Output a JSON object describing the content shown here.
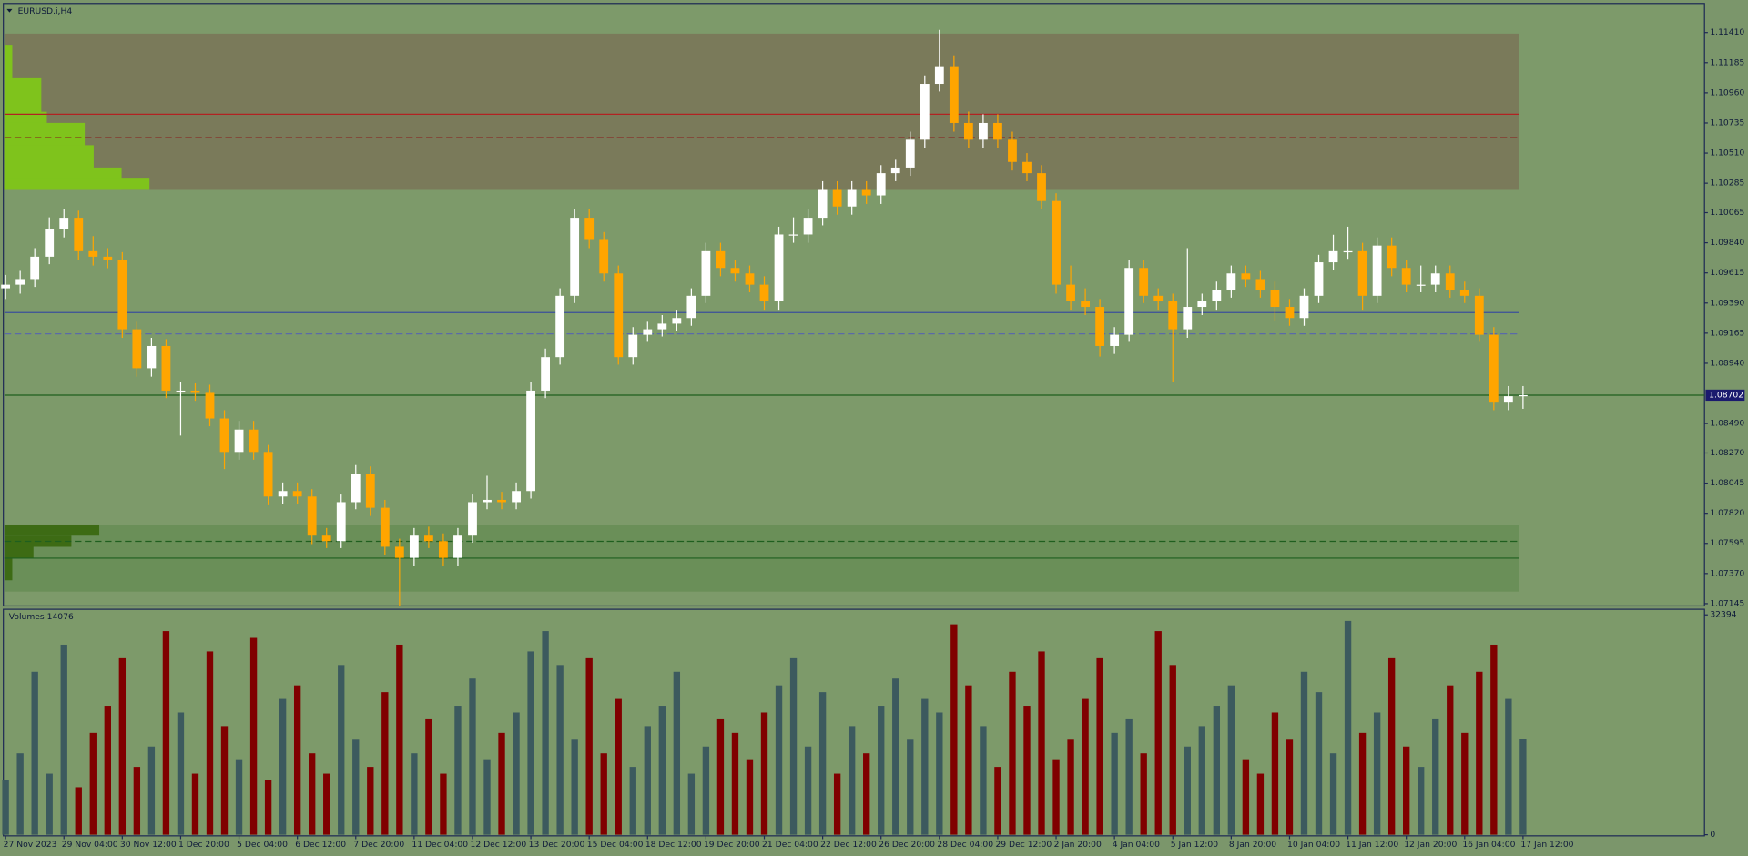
{
  "chart_data": {
    "type": "candlestick",
    "title": "EURUSD.i,H4",
    "volume_title": "Volumes 14076",
    "up_color": "#ffffff",
    "down_color": "#ffa500",
    "volume_up_color": "#3c5a5e",
    "volume_down_color": "#800000",
    "bid": 1.08702,
    "bid_color": "#1f5f1f",
    "ylim": [
      1.07128,
      1.11627
    ],
    "yticks": [
      {
        "value": 1.1141,
        "label": "1.11410"
      },
      1.11185,
      {
        "value": 1.1096,
        "label": "1.10960"
      },
      1.10735,
      {
        "value": 1.1051,
        "label": "1.10510"
      },
      1.10285,
      1.10065,
      {
        "value": 1.0984,
        "label": "1.09840"
      },
      1.09615,
      {
        "value": 1.0939,
        "label": "1.09390"
      },
      1.09165,
      {
        "value": 1.0894,
        "label": "1.08940"
      },
      {
        "value": 1.0849,
        "label": "1.08490"
      },
      {
        "value": 1.0827,
        "label": "1.08270"
      },
      1.08045,
      {
        "value": 1.0782,
        "label": "1.07820"
      },
      1.07595,
      {
        "value": 1.0737,
        "label": "1.07370"
      },
      1.07145
    ],
    "volume_ylim": [
      0,
      32394
    ],
    "volume_yticks": [
      32394,
      0
    ],
    "zones": [
      {
        "from": 1.10235,
        "to": 1.11402,
        "color": "#7a7a5a"
      },
      {
        "from": 1.07235,
        "to": 1.07735,
        "color": "#6a8f58"
      }
    ],
    "levels": [
      {
        "price": 1.108,
        "color": "#b22222",
        "dashed": false
      },
      {
        "price": 1.10625,
        "color": "#8b1a1a",
        "dashed": true
      },
      {
        "price": 1.09319,
        "color": "#3b4f9a",
        "dashed": false
      },
      {
        "price": 1.0916,
        "color": "#5a6aa8",
        "dashed": true
      },
      {
        "price": 1.0761,
        "color": "#1f5f1f",
        "dashed": true
      },
      {
        "price": 1.07485,
        "color": "#1f5f1f",
        "dashed": false
      }
    ],
    "categories": [
      "27 Nov 2023",
      null,
      null,
      null,
      "29 Nov 04:00",
      null,
      null,
      null,
      "30 Nov 12:00",
      null,
      null,
      null,
      "1 Dec 20:00",
      null,
      null,
      null,
      "5 Dec 04:00",
      null,
      null,
      null,
      "6 Dec 12:00",
      null,
      null,
      null,
      "7 Dec 20:00",
      null,
      null,
      null,
      "11 Dec 04:00",
      null,
      null,
      null,
      "12 Dec 12:00",
      null,
      null,
      null,
      "13 Dec 20:00",
      null,
      null,
      null,
      "15 Dec 04:00",
      null,
      null,
      null,
      "18 Dec 12:00",
      null,
      null,
      null,
      "19 Dec 20:00",
      null,
      null,
      null,
      "21 Dec 04:00",
      null,
      null,
      null,
      "22 Dec 12:00",
      null,
      null,
      null,
      "26 Dec 20:00",
      null,
      null,
      null,
      "28 Dec 04:00",
      null,
      null,
      null,
      "29 Dec 12:00",
      null,
      null,
      null,
      "2 Jan 20:00",
      null,
      null,
      null,
      "4 Jan 04:00",
      null,
      null,
      null,
      "5 Jan 12:00",
      null,
      null,
      null,
      "8 Jan 20:00",
      null,
      null,
      null,
      "10 Jan 04:00",
      null,
      null,
      null,
      "11 Jan 12:00",
      null,
      null,
      null,
      "12 Jan 20:00",
      null,
      null,
      null,
      "16 Jan 04:00",
      null,
      null,
      null,
      "17 Jan 12:00"
    ],
    "open": [
      1.095,
      1.09527,
      1.09569,
      1.09736,
      1.09944,
      1.10027,
      1.09777,
      1.09736,
      1.09711,
      1.09194,
      1.08903,
      1.09069,
      1.08736,
      1.08736,
      1.08719,
      1.08528,
      1.08278,
      1.08445,
      1.08278,
      1.07945,
      1.07986,
      1.07945,
      1.07653,
      1.07612,
      1.07903,
      1.08111,
      1.07861,
      1.0757,
      1.07487,
      1.07653,
      1.07612,
      1.07487,
      1.07653,
      1.07903,
      1.0792,
      1.07903,
      1.07986,
      1.08736,
      1.08986,
      1.09444,
      1.10027,
      1.09861,
      1.09611,
      1.08986,
      1.09153,
      1.09194,
      1.09236,
      1.09278,
      1.09444,
      1.09777,
      1.09652,
      1.09611,
      1.09527,
      1.09402,
      1.09902,
      1.09902,
      1.10027,
      1.10235,
      1.10111,
      1.10235,
      1.10194,
      1.1036,
      1.10402,
      1.1061,
      1.11027,
      1.11152,
      1.10735,
      1.1061,
      1.10735,
      1.1061,
      1.10444,
      1.1036,
      1.10152,
      1.09527,
      1.09402,
      1.09361,
      1.09069,
      1.09153,
      1.09652,
      1.09444,
      1.09402,
      1.09194,
      1.09361,
      1.09402,
      1.09486,
      1.09611,
      1.09569,
      1.09486,
      1.09361,
      1.09278,
      1.09444,
      1.09694,
      1.09777,
      1.09777,
      1.09444,
      1.09819,
      1.09652,
      1.09527,
      1.09527,
      1.09611,
      1.09486,
      1.09444,
      1.09153,
      1.08653,
      1.08694
    ],
    "high": [
      1.096,
      1.0963,
      1.098,
      1.1003,
      1.1009,
      1.1008,
      1.0989,
      1.098,
      1.0977,
      1.0925,
      1.0913,
      1.0912,
      1.088,
      1.0879,
      1.0878,
      1.0859,
      1.0851,
      1.0851,
      1.0833,
      1.0805,
      1.0805,
      1.08,
      1.0771,
      1.0796,
      1.0818,
      1.0817,
      1.0792,
      1.0763,
      1.0771,
      1.0772,
      1.0767,
      1.0771,
      1.0796,
      1.081,
      1.0798,
      1.0805,
      1.088,
      1.0905,
      1.095,
      1.1009,
      1.1009,
      1.0992,
      1.0967,
      1.0921,
      1.0925,
      1.093,
      1.0934,
      1.095,
      1.0984,
      1.0984,
      1.0971,
      1.0967,
      1.0959,
      1.0996,
      1.1003,
      1.1009,
      1.103,
      1.103,
      1.103,
      1.103,
      1.1042,
      1.1046,
      1.1067,
      1.1109,
      1.1143,
      1.1124,
      1.1082,
      1.108,
      1.108,
      1.1067,
      1.1051,
      1.1042,
      1.1021,
      1.0967,
      1.095,
      1.0942,
      1.0921,
      1.0971,
      1.0971,
      1.095,
      1.0946,
      1.098,
      1.0946,
      1.0955,
      1.0967,
      1.0967,
      1.0963,
      1.0955,
      1.0942,
      1.095,
      1.0975,
      1.099,
      1.0996,
      1.0984,
      1.0988,
      1.0988,
      1.0971,
      1.0967,
      1.0967,
      1.0967,
      1.0955,
      1.095,
      1.0921,
      1.0877,
      1.0877
    ],
    "low": [
      1.0942,
      1.0946,
      1.0951,
      1.0968,
      1.0988,
      1.0971,
      1.0967,
      1.0965,
      1.0913,
      1.0884,
      1.0884,
      1.0868,
      1.084,
      1.0866,
      1.0847,
      1.0815,
      1.0822,
      1.0822,
      1.0788,
      1.0789,
      1.0789,
      1.0759,
      1.0756,
      1.0756,
      1.0785,
      1.078,
      1.0751,
      1.0713,
      1.0743,
      1.0756,
      1.0743,
      1.0743,
      1.076,
      1.0785,
      1.0785,
      1.0785,
      1.0793,
      1.0868,
      1.0893,
      1.0939,
      1.098,
      1.0955,
      1.0893,
      1.0893,
      1.091,
      1.0914,
      1.0918,
      1.0922,
      1.0939,
      1.0959,
      1.0955,
      1.0947,
      1.0934,
      1.0934,
      1.0984,
      1.0984,
      1.0997,
      1.1005,
      1.1005,
      1.1013,
      1.1013,
      1.103,
      1.1034,
      1.1055,
      1.1097,
      1.1067,
      1.1055,
      1.1055,
      1.1055,
      1.1038,
      1.103,
      1.1009,
      1.0946,
      1.0934,
      1.093,
      1.0899,
      1.0901,
      1.091,
      1.0939,
      1.0934,
      1.088,
      1.0913,
      1.093,
      1.0934,
      1.0943,
      1.0951,
      1.0943,
      1.0926,
      1.0922,
      1.0922,
      1.0939,
      1.0964,
      1.0972,
      1.0934,
      1.0939,
      1.0959,
      1.0947,
      1.0947,
      1.0947,
      1.0943,
      1.0939,
      1.091,
      1.0859,
      1.0859,
      1.086
    ],
    "close": [
      1.09527,
      1.09569,
      1.09736,
      1.09944,
      1.10027,
      1.09777,
      1.09736,
      1.09711,
      1.09194,
      1.08903,
      1.09069,
      1.08736,
      1.08736,
      1.08719,
      1.08528,
      1.08278,
      1.08445,
      1.08278,
      1.07945,
      1.07986,
      1.07945,
      1.07653,
      1.07612,
      1.07903,
      1.08111,
      1.07861,
      1.0757,
      1.07487,
      1.07653,
      1.07612,
      1.07487,
      1.07653,
      1.07903,
      1.0792,
      1.07903,
      1.07986,
      1.08736,
      1.08986,
      1.09444,
      1.10027,
      1.09861,
      1.09611,
      1.08986,
      1.09153,
      1.09194,
      1.09236,
      1.09278,
      1.09444,
      1.09777,
      1.09652,
      1.09611,
      1.09527,
      1.09402,
      1.09902,
      1.09902,
      1.10027,
      1.10235,
      1.10111,
      1.10235,
      1.10194,
      1.1036,
      1.10402,
      1.1061,
      1.11027,
      1.11152,
      1.10735,
      1.1061,
      1.10735,
      1.1061,
      1.10444,
      1.1036,
      1.10152,
      1.09527,
      1.09402,
      1.09361,
      1.09069,
      1.09153,
      1.09652,
      1.09444,
      1.09402,
      1.09194,
      1.09361,
      1.09402,
      1.09486,
      1.09611,
      1.09569,
      1.09486,
      1.09361,
      1.09278,
      1.09444,
      1.09694,
      1.09777,
      1.09777,
      1.09444,
      1.09819,
      1.09652,
      1.09527,
      1.09527,
      1.09611,
      1.09486,
      1.09444,
      1.09153,
      1.08653,
      1.08694,
      1.08702
    ],
    "volumes": [
      8000,
      12000,
      24000,
      9000,
      28000,
      7000,
      15000,
      19000,
      26000,
      10000,
      13000,
      30000,
      18000,
      9000,
      27000,
      16000,
      11000,
      29000,
      8000,
      20000,
      22000,
      12000,
      9000,
      25000,
      14000,
      10000,
      21000,
      28000,
      12000,
      17000,
      9000,
      19000,
      23000,
      11000,
      15000,
      18000,
      27000,
      30000,
      25000,
      14000,
      26000,
      12000,
      20000,
      10000,
      16000,
      19000,
      24000,
      9000,
      13000,
      17000,
      15000,
      11000,
      18000,
      22000,
      26000,
      13000,
      21000,
      9000,
      16000,
      12000,
      19000,
      23000,
      14000,
      20000,
      18000,
      31000,
      22000,
      16000,
      10000,
      24000,
      19000,
      27000,
      11000,
      14000,
      20000,
      26000,
      15000,
      17000,
      12000,
      30000,
      25000,
      13000,
      16000,
      19000,
      22000,
      11000,
      9000,
      18000,
      14000,
      24000,
      21000,
      12000,
      31500,
      15000,
      18000,
      26000,
      13000,
      10000,
      17000,
      22000,
      15000,
      24000,
      28000,
      20000,
      14076
    ]
  }
}
